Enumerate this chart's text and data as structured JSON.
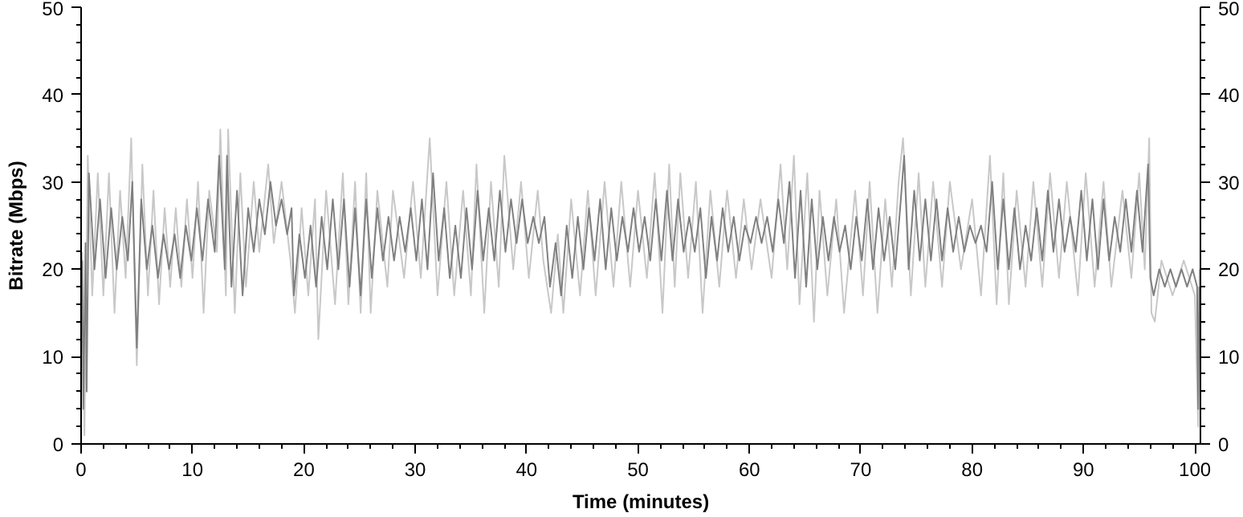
{
  "chart_data": {
    "type": "line",
    "xlabel": "Time (minutes)",
    "ylabel": "Bitrate (Mbps)",
    "xlim": [
      0,
      100.5
    ],
    "xticks": [
      0,
      10,
      20,
      30,
      40,
      50,
      60,
      70,
      80,
      90,
      100
    ],
    "ylim": [
      0,
      50
    ],
    "yticks": [
      0,
      10,
      20,
      30,
      40,
      50
    ],
    "y2lim": [
      0,
      50
    ],
    "y2ticks": [
      0,
      10,
      20,
      30,
      40,
      50
    ],
    "grid": false,
    "series": [
      {
        "color": "#c8c8c8",
        "x": [
          0.1,
          0.3,
          0.6,
          1.0,
          1.5,
          2.0,
          2.5,
          3.0,
          3.5,
          4.0,
          4.5,
          5.0,
          5.5,
          6.0,
          6.5,
          7.0,
          7.5,
          8.0,
          8.5,
          9.0,
          9.5,
          10.0,
          10.5,
          11.0,
          11.5,
          12.2,
          12.5,
          13.0,
          13.2,
          13.8,
          14.3,
          14.8,
          15.5,
          16.0,
          16.8,
          17.3,
          18.0,
          18.8,
          19.2,
          19.8,
          20.4,
          21.0,
          21.3,
          22.0,
          22.8,
          23.5,
          24.0,
          24.6,
          25.1,
          25.6,
          26.0,
          26.6,
          27.5,
          28.0,
          29.0,
          29.8,
          30.5,
          31.3,
          32.0,
          32.8,
          33.5,
          34.3,
          35.0,
          35.5,
          36.2,
          36.8,
          37.5,
          38.0,
          38.8,
          39.5,
          40.2,
          41.0,
          41.5,
          42.2,
          42.8,
          43.3,
          44.0,
          44.8,
          45.5,
          46.2,
          47.0,
          47.8,
          48.5,
          49.3,
          50.0,
          50.8,
          51.5,
          52.2,
          52.8,
          53.3,
          53.8,
          54.5,
          55.2,
          55.8,
          56.5,
          57.3,
          58.0,
          58.8,
          59.5,
          60.2,
          61.0,
          62.0,
          62.8,
          63.4,
          64.0,
          64.5,
          65.2,
          65.8,
          66.3,
          67.0,
          67.8,
          68.5,
          69.5,
          70.2,
          70.8,
          71.5,
          72.2,
          72.8,
          73.4,
          73.8,
          74.5,
          75.2,
          75.8,
          76.5,
          77.3,
          78.0,
          79.0,
          80.0,
          80.8,
          81.6,
          82.2,
          82.8,
          83.3,
          84.0,
          84.8,
          85.5,
          86.3,
          87.0,
          87.8,
          88.5,
          89.5,
          90.2,
          91.0,
          91.8,
          92.5,
          93.5,
          94.3,
          95.0,
          95.5,
          95.9,
          96.1,
          96.4,
          97.0,
          98.0,
          99.0,
          100.0,
          100.3,
          100.4
        ],
        "values": [
          22,
          1,
          33,
          17,
          31,
          17,
          31,
          15,
          29,
          19,
          35,
          9,
          32,
          17,
          29,
          16,
          27,
          18,
          27,
          18,
          28,
          19,
          30,
          15,
          29,
          22,
          36,
          17,
          36,
          15,
          31,
          18,
          30,
          22,
          32,
          23,
          30,
          21,
          15,
          27,
          17,
          28,
          12,
          29,
          16,
          31,
          16,
          30,
          15,
          31,
          15,
          29,
          18,
          29,
          19,
          30,
          19,
          35,
          17,
          30,
          17,
          29,
          17,
          32,
          15,
          30,
          18,
          33,
          20,
          30,
          19,
          29,
          21,
          15,
          24,
          15,
          28,
          17,
          29,
          17,
          30,
          18,
          30,
          18,
          29,
          19,
          31,
          15,
          32,
          18,
          31,
          19,
          30,
          15,
          29,
          18,
          29,
          19,
          28,
          20,
          28,
          19,
          32,
          20,
          33,
          16,
          31,
          14,
          29,
          17,
          28,
          15,
          29,
          17,
          30,
          15,
          28,
          18,
          30,
          35,
          17,
          31,
          18,
          30,
          18,
          30,
          20,
          28,
          17,
          33,
          16,
          31,
          16,
          29,
          18,
          30,
          18,
          31,
          19,
          30,
          17,
          31,
          18,
          30,
          18,
          29,
          19,
          31,
          20,
          35,
          15,
          14,
          21,
          17,
          21,
          17,
          2,
          20
        ]
      },
      {
        "color": "#808080",
        "x": [
          0.1,
          0.2,
          0.4,
          0.5,
          0.7,
          1.2,
          1.7,
          2.2,
          2.7,
          3.2,
          3.7,
          4.2,
          4.6,
          5.0,
          5.4,
          5.9,
          6.4,
          6.9,
          7.4,
          7.9,
          8.4,
          8.9,
          9.4,
          9.9,
          10.4,
          10.9,
          11.4,
          12.0,
          12.4,
          12.9,
          13.1,
          13.5,
          14.0,
          14.5,
          15.0,
          15.5,
          16.0,
          16.5,
          17.0,
          17.5,
          18.0,
          18.5,
          18.9,
          19.1,
          19.6,
          20.1,
          20.6,
          21.1,
          21.6,
          22.1,
          22.6,
          23.1,
          23.6,
          24.1,
          24.6,
          25.1,
          25.6,
          26.1,
          26.6,
          27.1,
          27.6,
          28.1,
          28.6,
          29.1,
          29.6,
          30.1,
          30.6,
          31.1,
          31.6,
          32.1,
          32.6,
          33.1,
          33.6,
          34.1,
          34.6,
          35.1,
          35.6,
          36.1,
          36.6,
          37.1,
          37.6,
          38.1,
          38.6,
          39.1,
          39.6,
          40.1,
          40.6,
          41.1,
          41.6,
          42.1,
          42.6,
          43.1,
          43.6,
          44.1,
          44.6,
          45.1,
          45.6,
          46.1,
          46.6,
          47.1,
          47.6,
          48.1,
          48.6,
          49.1,
          49.6,
          50.1,
          50.6,
          51.1,
          51.6,
          52.1,
          52.6,
          53.1,
          53.6,
          54.1,
          54.6,
          55.1,
          55.6,
          56.1,
          56.6,
          57.1,
          57.6,
          58.1,
          58.6,
          59.1,
          59.6,
          60.1,
          60.6,
          61.1,
          61.6,
          62.1,
          62.6,
          63.1,
          63.6,
          64.1,
          64.6,
          65.1,
          65.6,
          66.1,
          66.6,
          67.1,
          67.6,
          68.1,
          68.6,
          69.1,
          69.6,
          70.1,
          70.6,
          71.1,
          71.6,
          72.1,
          72.6,
          73.1,
          73.6,
          73.9,
          74.3,
          74.8,
          75.3,
          75.8,
          76.3,
          76.8,
          77.3,
          77.8,
          78.3,
          78.8,
          79.3,
          79.8,
          80.3,
          80.8,
          81.3,
          81.8,
          82.3,
          82.8,
          83.3,
          83.8,
          84.3,
          84.8,
          85.3,
          85.8,
          86.3,
          86.8,
          87.3,
          87.8,
          88.3,
          88.8,
          89.3,
          89.8,
          90.3,
          90.8,
          91.3,
          91.8,
          92.3,
          92.8,
          93.3,
          93.8,
          94.3,
          94.8,
          95.3,
          95.8,
          96.0,
          96.3,
          96.8,
          97.3,
          97.8,
          98.3,
          98.8,
          99.3,
          99.8,
          100.2,
          100.3,
          100.4
        ],
        "values": [
          21,
          4,
          23,
          6,
          31,
          20,
          28,
          19,
          27,
          20,
          26,
          21,
          30,
          11,
          28,
          20,
          25,
          19,
          24,
          20,
          24,
          19,
          25,
          21,
          27,
          21,
          28,
          22,
          33,
          20,
          33,
          18,
          29,
          17,
          27,
          22,
          28,
          24,
          30,
          25,
          28,
          24,
          27,
          17,
          24,
          19,
          25,
          18,
          26,
          20,
          28,
          20,
          28,
          18,
          27,
          17,
          28,
          19,
          27,
          21,
          26,
          21,
          26,
          22,
          27,
          21,
          28,
          20,
          31,
          21,
          27,
          19,
          25,
          19,
          27,
          20,
          29,
          21,
          27,
          21,
          29,
          22,
          28,
          23,
          28,
          23,
          26,
          23,
          26,
          18,
          23,
          17,
          25,
          19,
          26,
          20,
          27,
          21,
          28,
          20,
          27,
          21,
          26,
          22,
          27,
          22,
          26,
          21,
          28,
          21,
          29,
          21,
          28,
          22,
          26,
          22,
          27,
          19,
          26,
          21,
          27,
          22,
          26,
          21,
          25,
          23,
          26,
          23,
          26,
          22,
          28,
          23,
          30,
          19,
          29,
          18,
          28,
          20,
          26,
          21,
          26,
          22,
          25,
          20,
          26,
          21,
          28,
          20,
          27,
          21,
          26,
          20,
          28,
          33,
          20,
          29,
          21,
          28,
          21,
          28,
          21,
          27,
          22,
          26,
          22,
          25,
          23,
          25,
          22,
          30,
          20,
          28,
          20,
          27,
          20,
          25,
          21,
          27,
          21,
          29,
          22,
          28,
          22,
          26,
          22,
          29,
          21,
          28,
          20,
          28,
          21,
          26,
          22,
          28,
          22,
          29,
          22,
          32,
          19,
          17,
          20,
          18,
          20,
          18,
          20,
          18,
          20,
          18,
          4,
          18
        ]
      }
    ]
  }
}
